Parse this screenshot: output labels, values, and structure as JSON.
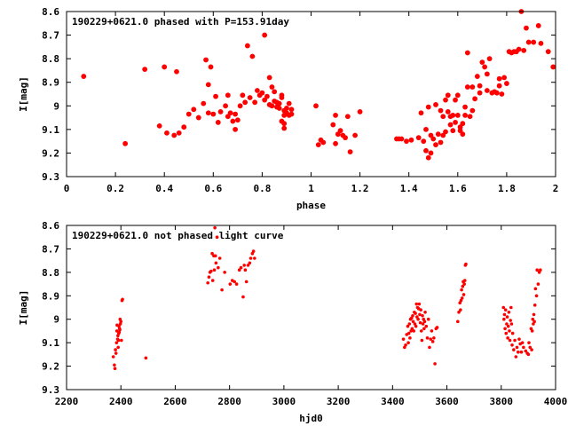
{
  "colors": {
    "points": "#ff0000",
    "frame": "#000000",
    "background": "#ffffff"
  },
  "chart_data": [
    {
      "type": "scatter",
      "title": "190229+0621.0 phased with P=153.91day",
      "xlabel": "phase",
      "ylabel": "I[mag]",
      "xlim": [
        0,
        2
      ],
      "ylim": [
        8.6,
        9.3
      ],
      "y_inverted": true,
      "grid": false,
      "legend": "none",
      "marker": "filled-circle",
      "xticks": [
        "0",
        "0.2",
        "0.4",
        "0.6",
        "0.8",
        "1",
        "1.2",
        "1.4",
        "1.6",
        "1.8",
        "2"
      ],
      "yticks": [
        "8.6",
        "8.7",
        "8.8",
        "8.9",
        "9",
        "9.1",
        "9.2",
        "9.3"
      ],
      "points": [
        [
          0.07,
          8.875
        ],
        [
          0.24,
          9.16
        ],
        [
          0.32,
          8.845
        ],
        [
          0.38,
          9.085
        ],
        [
          0.4,
          8.835
        ],
        [
          0.41,
          9.115
        ],
        [
          0.44,
          9.125
        ],
        [
          0.45,
          8.855
        ],
        [
          0.46,
          9.115
        ],
        [
          0.48,
          9.09
        ],
        [
          0.5,
          9.035
        ],
        [
          0.52,
          9.015
        ],
        [
          0.54,
          9.05
        ],
        [
          0.56,
          8.99
        ],
        [
          0.57,
          8.805
        ],
        [
          0.58,
          8.91
        ],
        [
          0.58,
          9.03
        ],
        [
          0.59,
          8.835
        ],
        [
          0.6,
          9.035
        ],
        [
          0.61,
          8.96
        ],
        [
          0.62,
          9.07
        ],
        [
          0.63,
          9.025
        ],
        [
          0.65,
          9.0
        ],
        [
          0.66,
          8.955
        ],
        [
          0.66,
          9.045
        ],
        [
          0.67,
          9.03
        ],
        [
          0.68,
          9.065
        ],
        [
          0.69,
          9.1
        ],
        [
          0.69,
          9.035
        ],
        [
          0.7,
          9.06
        ],
        [
          0.71,
          9.0
        ],
        [
          0.72,
          8.955
        ],
        [
          0.73,
          8.985
        ],
        [
          0.74,
          8.745
        ],
        [
          0.75,
          8.965
        ],
        [
          0.76,
          8.79
        ],
        [
          0.77,
          8.985
        ],
        [
          0.78,
          8.935
        ],
        [
          0.79,
          8.955
        ],
        [
          0.8,
          8.945
        ],
        [
          0.81,
          8.7
        ],
        [
          0.81,
          8.975
        ],
        [
          0.82,
          8.96
        ],
        [
          0.83,
          8.88
        ],
        [
          0.83,
          8.995
        ],
        [
          0.84,
          9.0
        ],
        [
          0.84,
          8.92
        ],
        [
          0.85,
          8.98
        ],
        [
          0.85,
          8.94
        ],
        [
          0.86,
          8.985
        ],
        [
          0.86,
          9.005
        ],
        [
          0.87,
          8.99
        ],
        [
          0.87,
          9.01
        ],
        [
          0.88,
          8.965
        ],
        [
          0.88,
          8.955
        ],
        [
          0.88,
          9.065
        ],
        [
          0.89,
          9.04
        ],
        [
          0.89,
          9.02
        ],
        [
          0.89,
          9.075
        ],
        [
          0.89,
          9.095
        ],
        [
          0.9,
          9.03
        ],
        [
          0.9,
          9.01
        ],
        [
          0.91,
          9.04
        ],
        [
          0.91,
          8.99
        ],
        [
          0.92,
          9.035
        ],
        [
          0.92,
          9.015
        ],
        [
          1.02,
          9.0
        ],
        [
          1.03,
          9.165
        ],
        [
          1.04,
          9.145
        ],
        [
          1.05,
          9.155
        ],
        [
          1.09,
          9.08
        ],
        [
          1.1,
          9.04
        ],
        [
          1.1,
          9.16
        ],
        [
          1.11,
          9.12
        ],
        [
          1.12,
          9.105
        ],
        [
          1.13,
          9.125
        ],
        [
          1.14,
          9.135
        ],
        [
          1.15,
          9.045
        ],
        [
          1.16,
          9.195
        ],
        [
          1.18,
          9.125
        ],
        [
          1.2,
          9.025
        ],
        [
          1.35,
          9.14
        ],
        [
          1.36,
          9.14
        ],
        [
          1.37,
          9.14
        ],
        [
          1.39,
          9.15
        ],
        [
          1.41,
          9.145
        ],
        [
          1.44,
          9.135
        ],
        [
          1.45,
          9.03
        ],
        [
          1.46,
          9.15
        ],
        [
          1.47,
          9.1
        ],
        [
          1.47,
          9.19
        ],
        [
          1.48,
          9.005
        ],
        [
          1.48,
          9.22
        ],
        [
          1.49,
          9.2
        ],
        [
          1.49,
          9.125
        ],
        [
          1.5,
          9.14
        ],
        [
          1.51,
          8.995
        ],
        [
          1.51,
          9.165
        ],
        [
          1.52,
          9.12
        ],
        [
          1.53,
          9.02
        ],
        [
          1.53,
          9.155
        ],
        [
          1.54,
          9.045
        ],
        [
          1.54,
          9.125
        ],
        [
          1.55,
          8.975
        ],
        [
          1.55,
          9.11
        ],
        [
          1.56,
          9.025
        ],
        [
          1.56,
          8.955
        ],
        [
          1.57,
          9.08
        ],
        [
          1.57,
          9.045
        ],
        [
          1.58,
          9.04
        ],
        [
          1.58,
          9.105
        ],
        [
          1.59,
          8.975
        ],
        [
          1.59,
          9.07
        ],
        [
          1.6,
          8.955
        ],
        [
          1.6,
          9.04
        ],
        [
          1.61,
          9.105
        ],
        [
          1.61,
          9.09
        ],
        [
          1.62,
          9.12
        ],
        [
          1.62,
          9.075
        ],
        [
          1.63,
          9.04
        ],
        [
          1.63,
          9.005
        ],
        [
          1.64,
          8.92
        ],
        [
          1.64,
          8.775
        ],
        [
          1.65,
          9.045
        ],
        [
          1.66,
          9.02
        ],
        [
          1.66,
          8.92
        ],
        [
          1.67,
          8.97
        ],
        [
          1.68,
          8.875
        ],
        [
          1.69,
          8.945
        ],
        [
          1.69,
          8.915
        ],
        [
          1.7,
          8.815
        ],
        [
          1.71,
          8.835
        ],
        [
          1.72,
          8.935
        ],
        [
          1.72,
          8.865
        ],
        [
          1.73,
          8.8
        ],
        [
          1.74,
          8.945
        ],
        [
          1.75,
          8.94
        ],
        [
          1.76,
          8.945
        ],
        [
          1.77,
          8.885
        ],
        [
          1.77,
          8.915
        ],
        [
          1.78,
          8.95
        ],
        [
          1.79,
          8.88
        ],
        [
          1.8,
          8.905
        ],
        [
          1.81,
          8.77
        ],
        [
          1.82,
          8.775
        ],
        [
          1.83,
          8.77
        ],
        [
          1.84,
          8.77
        ],
        [
          1.85,
          8.76
        ],
        [
          1.86,
          8.6
        ],
        [
          1.87,
          8.765
        ],
        [
          1.88,
          8.67
        ],
        [
          1.89,
          8.73
        ],
        [
          1.91,
          8.73
        ],
        [
          1.93,
          8.66
        ],
        [
          1.94,
          8.735
        ],
        [
          1.97,
          8.77
        ],
        [
          1.99,
          8.835
        ]
      ]
    },
    {
      "type": "scatter",
      "title": "190229+0621.0 not phased light curve",
      "xlabel": "hjd0",
      "ylabel": "I[mag]",
      "xlim": [
        2200,
        4000
      ],
      "ylim": [
        8.6,
        9.3
      ],
      "y_inverted": true,
      "grid": false,
      "legend": "none",
      "marker": "small-dot",
      "xticks": [
        "2200",
        "2400",
        "2600",
        "2800",
        "3000",
        "3200",
        "3400",
        "3600",
        "3800",
        "4000"
      ],
      "yticks": [
        "8.6",
        "8.7",
        "8.8",
        "8.9",
        "9",
        "9.1",
        "9.2",
        "9.3"
      ],
      "points": [
        [
          2372,
          9.16
        ],
        [
          2376,
          9.195
        ],
        [
          2378,
          9.21
        ],
        [
          2380,
          9.13
        ],
        [
          2382,
          9.145
        ],
        [
          2384,
          9.1
        ],
        [
          2385,
          9.05
        ],
        [
          2386,
          9.025
        ],
        [
          2388,
          9.085
        ],
        [
          2389,
          9.07
        ],
        [
          2390,
          9.12
        ],
        [
          2391,
          9.09
        ],
        [
          2392,
          9.06
        ],
        [
          2393,
          9.03
        ],
        [
          2394,
          9.055
        ],
        [
          2395,
          9.04
        ],
        [
          2396,
          9.045
        ],
        [
          2397,
          9.0
        ],
        [
          2398,
          9.02
        ],
        [
          2400,
          9.01
        ],
        [
          2402,
          9.09
        ],
        [
          2404,
          8.92
        ],
        [
          2406,
          8.915
        ],
        [
          2492,
          9.165
        ],
        [
          2720,
          8.845
        ],
        [
          2724,
          8.82
        ],
        [
          2728,
          8.8
        ],
        [
          2732,
          8.795
        ],
        [
          2736,
          8.72
        ],
        [
          2738,
          8.835
        ],
        [
          2742,
          8.73
        ],
        [
          2744,
          8.79
        ],
        [
          2746,
          8.61
        ],
        [
          2748,
          8.73
        ],
        [
          2750,
          8.76
        ],
        [
          2754,
          8.65
        ],
        [
          2758,
          8.78
        ],
        [
          2764,
          8.74
        ],
        [
          2772,
          8.875
        ],
        [
          2782,
          8.8
        ],
        [
          2802,
          8.85
        ],
        [
          2810,
          8.835
        ],
        [
          2818,
          8.84
        ],
        [
          2826,
          8.85
        ],
        [
          2836,
          8.79
        ],
        [
          2842,
          8.78
        ],
        [
          2850,
          8.905
        ],
        [
          2854,
          8.77
        ],
        [
          2858,
          8.79
        ],
        [
          2862,
          8.84
        ],
        [
          2868,
          8.77
        ],
        [
          2874,
          8.76
        ],
        [
          2878,
          8.74
        ],
        [
          2884,
          8.72
        ],
        [
          2888,
          8.71
        ],
        [
          2892,
          8.74
        ],
        [
          3440,
          9.085
        ],
        [
          3444,
          9.12
        ],
        [
          3448,
          9.11
        ],
        [
          3452,
          9.065
        ],
        [
          3456,
          9.03
        ],
        [
          3458,
          9.1
        ],
        [
          3460,
          9.06
        ],
        [
          3462,
          9.02
        ],
        [
          3464,
          9.08
        ],
        [
          3466,
          9.0
        ],
        [
          3468,
          9.05
        ],
        [
          3470,
          8.995
        ],
        [
          3472,
          9.04
        ],
        [
          3474,
          8.985
        ],
        [
          3476,
          9.01
        ],
        [
          3478,
          9.05
        ],
        [
          3480,
          8.97
        ],
        [
          3482,
          9.02
        ],
        [
          3484,
          8.975
        ],
        [
          3486,
          9.03
        ],
        [
          3488,
          8.935
        ],
        [
          3490,
          8.99
        ],
        [
          3492,
          8.95
        ],
        [
          3494,
          9.0
        ],
        [
          3496,
          8.955
        ],
        [
          3498,
          8.935
        ],
        [
          3500,
          8.98
        ],
        [
          3502,
          9.015
        ],
        [
          3504,
          8.96
        ],
        [
          3506,
          9.05
        ],
        [
          3508,
          9.09
        ],
        [
          3510,
          8.985
        ],
        [
          3512,
          9.02
        ],
        [
          3514,
          9.0
        ],
        [
          3516,
          9.04
        ],
        [
          3518,
          9.01
        ],
        [
          3520,
          8.97
        ],
        [
          3524,
          9.03
        ],
        [
          3528,
          9.08
        ],
        [
          3532,
          9.0
        ],
        [
          3536,
          9.12
        ],
        [
          3540,
          9.085
        ],
        [
          3544,
          9.05
        ],
        [
          3548,
          9.095
        ],
        [
          3552,
          9.08
        ],
        [
          3556,
          9.19
        ],
        [
          3560,
          9.04
        ],
        [
          3564,
          9.035
        ],
        [
          3640,
          9.01
        ],
        [
          3644,
          8.97
        ],
        [
          3648,
          8.93
        ],
        [
          3650,
          8.96
        ],
        [
          3652,
          8.92
        ],
        [
          3654,
          8.875
        ],
        [
          3656,
          8.91
        ],
        [
          3658,
          8.86
        ],
        [
          3660,
          8.84
        ],
        [
          3662,
          8.895
        ],
        [
          3664,
          8.85
        ],
        [
          3666,
          8.835
        ],
        [
          3668,
          8.77
        ],
        [
          3670,
          8.765
        ],
        [
          3808,
          8.95
        ],
        [
          3810,
          9.0
        ],
        [
          3812,
          8.98
        ],
        [
          3814,
          9.04
        ],
        [
          3816,
          8.96
        ],
        [
          3818,
          9.06
        ],
        [
          3820,
          9.02
        ],
        [
          3822,
          8.99
        ],
        [
          3824,
          9.08
        ],
        [
          3826,
          9.03
        ],
        [
          3828,
          8.97
        ],
        [
          3830,
          9.05
        ],
        [
          3832,
          9.09
        ],
        [
          3834,
          9.005
        ],
        [
          3836,
          8.95
        ],
        [
          3838,
          9.02
        ],
        [
          3840,
          9.11
        ],
        [
          3842,
          9.06
        ],
        [
          3846,
          9.13
        ],
        [
          3850,
          9.09
        ],
        [
          3854,
          9.16
        ],
        [
          3858,
          9.12
        ],
        [
          3862,
          9.14
        ],
        [
          3866,
          9.085
        ],
        [
          3870,
          9.105
        ],
        [
          3874,
          9.14
        ],
        [
          3878,
          9.1
        ],
        [
          3882,
          9.12
        ],
        [
          3890,
          9.135
        ],
        [
          3896,
          9.145
        ],
        [
          3900,
          9.15
        ],
        [
          3902,
          9.1
        ],
        [
          3906,
          9.12
        ],
        [
          3910,
          9.04
        ],
        [
          3912,
          9.13
        ],
        [
          3914,
          9.05
        ],
        [
          3916,
          9.0
        ],
        [
          3918,
          9.02
        ],
        [
          3920,
          8.98
        ],
        [
          3922,
          9.01
        ],
        [
          3924,
          8.94
        ],
        [
          3926,
          8.87
        ],
        [
          3930,
          8.9
        ],
        [
          3932,
          8.79
        ],
        [
          3936,
          8.85
        ],
        [
          3940,
          8.8
        ],
        [
          3944,
          8.79
        ]
      ]
    }
  ]
}
